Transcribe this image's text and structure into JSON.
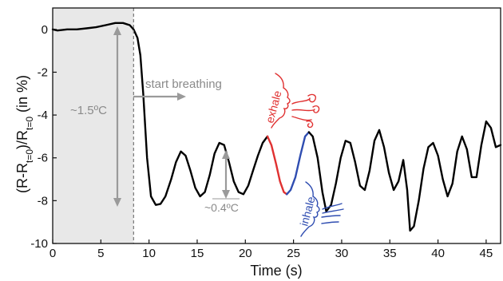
{
  "chart_data": {
    "type": "line",
    "xlabel": "Time (s)",
    "ylabel_parts": {
      "open": "(R-R",
      "sub1": "t=0",
      "mid": ")/R",
      "sub2": "t=0",
      "close": " (in %)"
    },
    "xlim": [
      0,
      46.5
    ],
    "ylim": [
      -10,
      1
    ],
    "xticks": [
      0,
      5,
      10,
      15,
      20,
      25,
      30,
      35,
      40,
      45
    ],
    "yticks": [
      0,
      -2,
      -4,
      -6,
      -8,
      -10
    ],
    "breathing_start_x": 8.4,
    "series": [
      {
        "color": "#000000",
        "x": [
          0,
          0.5,
          1.5,
          2.5,
          3.5,
          4.5,
          5.5,
          6.5,
          7.3,
          8,
          8.4,
          8.8,
          9.1,
          9.4,
          9.8,
          10.2,
          10.7,
          11.2,
          11.7,
          12.3,
          12.8,
          13.3,
          13.8,
          14.3,
          14.8,
          15.3,
          15.8,
          16.3,
          16.8,
          17.3,
          17.8,
          18.3,
          18.8,
          19.3,
          19.8,
          20.3,
          20.8,
          21.3,
          21.8,
          22.3
        ],
        "values": [
          0.0,
          -0.05,
          0.0,
          0.0,
          0.05,
          0.1,
          0.2,
          0.3,
          0.3,
          0.2,
          0.0,
          -0.4,
          -1.2,
          -3.0,
          -6.0,
          -7.8,
          -8.2,
          -8.15,
          -7.8,
          -7.0,
          -6.2,
          -5.7,
          -5.9,
          -6.6,
          -7.4,
          -7.8,
          -7.6,
          -6.8,
          -5.8,
          -5.3,
          -5.4,
          -6.2,
          -7.1,
          -7.6,
          -7.7,
          -7.3,
          -6.6,
          -5.9,
          -5.3,
          -5.0
        ]
      },
      {
        "color": "#e03131",
        "x": [
          22.3,
          22.7,
          23.2,
          23.6,
          24.0,
          24.3
        ],
        "values": [
          -5.0,
          -5.4,
          -6.3,
          -7.1,
          -7.6,
          -7.7
        ]
      },
      {
        "color": "#2f4db1",
        "x": [
          24.3,
          24.7,
          25.2,
          25.7,
          26.2,
          26.6
        ],
        "values": [
          -7.7,
          -7.5,
          -6.9,
          -5.9,
          -5.0,
          -4.8
        ]
      },
      {
        "color": "#000000",
        "x": [
          26.6,
          27.0,
          27.5,
          28.0,
          28.4,
          28.9,
          29.4,
          29.9,
          30.4,
          30.9,
          31.4,
          31.9,
          32.4,
          32.9,
          33.4,
          33.9,
          34.4,
          34.9,
          35.4,
          35.9,
          36.4,
          36.8,
          37.1,
          37.5,
          38.0,
          38.5,
          39.0,
          39.5,
          40.0,
          40.5,
          41.0,
          41.5,
          42.0,
          42.5,
          43.0,
          43.5,
          44.0,
          44.5,
          45.0,
          45.5,
          46.0,
          46.5
        ],
        "values": [
          -4.8,
          -5.0,
          -6.0,
          -7.6,
          -8.5,
          -8.2,
          -7.2,
          -6.0,
          -5.2,
          -5.3,
          -6.2,
          -7.3,
          -7.5,
          -6.6,
          -5.2,
          -4.7,
          -5.5,
          -6.7,
          -7.5,
          -7.1,
          -6.1,
          -7.5,
          -9.4,
          -9.2,
          -8.0,
          -6.5,
          -5.5,
          -5.3,
          -5.9,
          -7.0,
          -7.8,
          -7.2,
          -5.7,
          -5.0,
          -5.6,
          -6.9,
          -6.9,
          -5.4,
          -4.3,
          -4.6,
          -5.5,
          -5.4
        ]
      }
    ],
    "annotations": {
      "start_breathing": "start breathing",
      "big_delta": "~1.5ºC",
      "small_delta": "~0.4ºC",
      "exhale": "exhale",
      "inhale": "inhale"
    }
  },
  "colors": {
    "shade": "#e8e8e8",
    "annotation_gray": "#8a8a8a",
    "exhale": "#e03131",
    "inhale": "#2f4db1",
    "axis": "#111111"
  }
}
